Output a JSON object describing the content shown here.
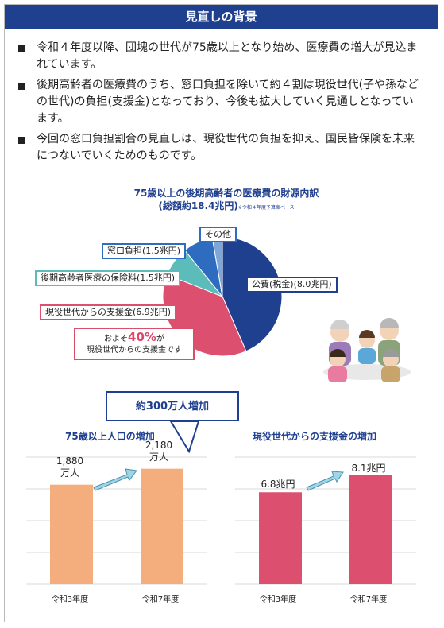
{
  "header": {
    "title": "見直しの背景"
  },
  "bullets": [
    "令和４年度以降、団塊の世代が75歳以上となり始め、医療費の増大が見込まれています。",
    "後期高齢者の医療費のうち、窓口負担を除いて約４割は現役世代(子や孫などの世代)の負担(支援金)となっており、今後も拡大していく見通しとなっています。",
    "今回の窓口負担割合の見直しは、現役世代の負担を抑え、国民皆保険を未来につないでいくためのものです。"
  ],
  "pie": {
    "title_line1": "75歳以上の後期高齢者の医療費の財源内訳",
    "title_line2": "(総額約18.4兆円)",
    "note": "※令和４年度予算案ベース",
    "callout_prefix": "およそ",
    "callout_pct": "40%",
    "callout_suffix": "が",
    "callout_line2": "現役世代からの支援金です"
  },
  "chart_data": [
    {
      "type": "pie",
      "title": "75歳以上の後期高齢者の医療費の財源内訳",
      "subtitle": "(総額約18.4兆円)",
      "slices": [
        {
          "label": "公費(税金)(8.0兆円)",
          "value": 8.0,
          "color": "#1f3f8f"
        },
        {
          "label": "現役世代からの支援金(6.9兆円)",
          "value": 6.9,
          "color": "#dd4f6e"
        },
        {
          "label": "後期高齢者医療の保険料(1.5兆円)",
          "value": 1.5,
          "color": "#5bbcb9"
        },
        {
          "label": "窓口負担(1.5兆円)",
          "value": 1.5,
          "color": "#2e6cc0"
        },
        {
          "label": "その他",
          "value": 0.5,
          "color": "#7ea6d8"
        }
      ]
    },
    {
      "type": "bar",
      "title": "75歳以上人口の増加",
      "categories": [
        "令和3年度",
        "令和7年度"
      ],
      "values": [
        1880,
        2180
      ],
      "value_labels_line1": [
        "1,880",
        "2,180"
      ],
      "value_labels_line2": [
        "万人",
        "万人"
      ],
      "ylim": [
        0,
        2400
      ],
      "color": "#f4ae7e"
    },
    {
      "type": "bar",
      "title": "現役世代からの支援金の増加",
      "categories": [
        "令和3年度",
        "令和7年度"
      ],
      "values": [
        6.8,
        8.1
      ],
      "value_labels": [
        "6.8兆円",
        "8.1兆円"
      ],
      "ylim": [
        0,
        9.4
      ],
      "color": "#dd4f6e"
    }
  ],
  "increase_box": "約300万人増加"
}
